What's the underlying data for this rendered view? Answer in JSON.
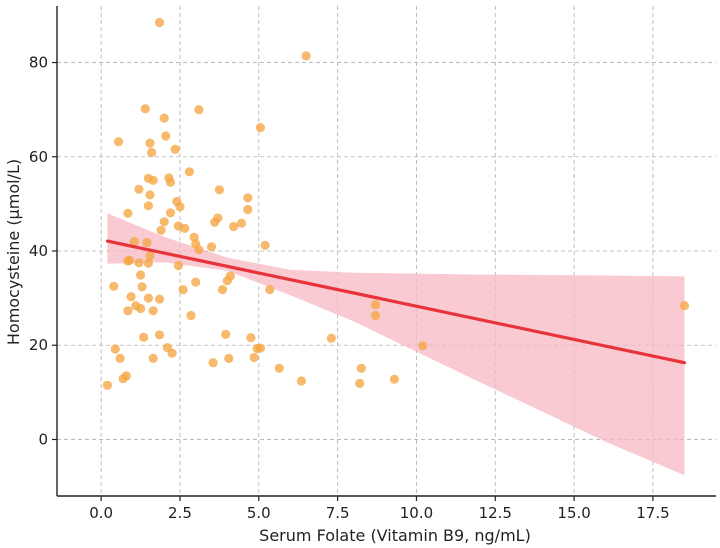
{
  "chart_data": {
    "type": "scatter",
    "title": "",
    "xlabel": "Serum Folate (Vitamin B9, ng/mL)",
    "ylabel": "Homocysteine (µmol/L)",
    "xlim": [
      -1.4,
      19.5
    ],
    "ylim": [
      -12,
      92
    ],
    "xticks": [
      {
        "value": 0,
        "label": "0.0"
      },
      {
        "value": 2.5,
        "label": "2.5"
      },
      {
        "value": 5,
        "label": "5.0"
      },
      {
        "value": 7.5,
        "label": "7.5"
      },
      {
        "value": 10,
        "label": "10.0"
      },
      {
        "value": 12.5,
        "label": "12.5"
      },
      {
        "value": 15,
        "label": "15.0"
      },
      {
        "value": 17.5,
        "label": "17.5"
      }
    ],
    "yticks": [
      {
        "value": 0,
        "label": "0"
      },
      {
        "value": 20,
        "label": "20"
      },
      {
        "value": 40,
        "label": "40"
      },
      {
        "value": 60,
        "label": "60"
      },
      {
        "value": 80,
        "label": "80"
      }
    ],
    "grid": true,
    "colors": {
      "points": "#f5a742",
      "regression_line": "#e8333a",
      "confidence_band": "#f7b8c3",
      "grid": "#b0b0b0",
      "axis": "#222222"
    },
    "series": [
      {
        "points": [
          [
            0.2,
            11.5
          ],
          [
            0.4,
            32.5
          ],
          [
            0.45,
            19.2
          ],
          [
            0.55,
            63.2
          ],
          [
            0.6,
            17.2
          ],
          [
            0.7,
            12.9
          ],
          [
            0.8,
            13.5
          ],
          [
            0.85,
            37.9
          ],
          [
            0.85,
            27.3
          ],
          [
            0.85,
            48.0
          ],
          [
            0.9,
            38.0
          ],
          [
            0.95,
            30.3
          ],
          [
            1.05,
            42.0
          ],
          [
            1.1,
            28.4
          ],
          [
            1.2,
            53.1
          ],
          [
            1.2,
            37.5
          ],
          [
            1.25,
            34.9
          ],
          [
            1.25,
            27.8
          ],
          [
            1.3,
            32.4
          ],
          [
            1.35,
            21.7
          ],
          [
            1.4,
            70.2
          ],
          [
            1.45,
            41.8
          ],
          [
            1.5,
            55.4
          ],
          [
            1.5,
            49.6
          ],
          [
            1.5,
            30.0
          ],
          [
            1.5,
            37.4
          ],
          [
            1.55,
            62.9
          ],
          [
            1.55,
            51.9
          ],
          [
            1.55,
            39.0
          ],
          [
            1.6,
            60.9
          ],
          [
            1.65,
            55.0
          ],
          [
            1.65,
            27.3
          ],
          [
            1.65,
            17.2
          ],
          [
            1.85,
            88.5
          ],
          [
            1.85,
            29.8
          ],
          [
            1.85,
            22.2
          ],
          [
            1.9,
            44.4
          ],
          [
            2.0,
            68.2
          ],
          [
            2.0,
            46.2
          ],
          [
            2.05,
            64.4
          ],
          [
            2.1,
            19.5
          ],
          [
            2.15,
            55.5
          ],
          [
            2.2,
            54.6
          ],
          [
            2.2,
            48.1
          ],
          [
            2.25,
            18.3
          ],
          [
            2.35,
            61.6
          ],
          [
            2.4,
            50.5
          ],
          [
            2.45,
            36.9
          ],
          [
            2.45,
            45.3
          ],
          [
            2.5,
            49.4
          ],
          [
            2.6,
            31.8
          ],
          [
            2.65,
            44.8
          ],
          [
            2.8,
            56.8
          ],
          [
            2.85,
            26.3
          ],
          [
            2.95,
            42.9
          ],
          [
            3.0,
            33.4
          ],
          [
            3.0,
            41.5
          ],
          [
            3.1,
            70.0
          ],
          [
            3.1,
            40.3
          ],
          [
            3.5,
            40.9
          ],
          [
            3.55,
            16.3
          ],
          [
            3.6,
            46.1
          ],
          [
            3.7,
            47.0
          ],
          [
            3.75,
            53.0
          ],
          [
            3.85,
            31.8
          ],
          [
            3.95,
            22.3
          ],
          [
            4.0,
            33.7
          ],
          [
            4.05,
            17.2
          ],
          [
            4.1,
            34.7
          ],
          [
            4.2,
            45.2
          ],
          [
            4.45,
            45.9
          ],
          [
            4.65,
            51.3
          ],
          [
            4.65,
            48.8
          ],
          [
            4.75,
            21.6
          ],
          [
            4.85,
            17.4
          ],
          [
            4.95,
            19.3
          ],
          [
            5.05,
            66.2
          ],
          [
            5.05,
            19.4
          ],
          [
            5.2,
            41.2
          ],
          [
            5.35,
            31.8
          ],
          [
            5.65,
            15.1
          ],
          [
            6.35,
            12.4
          ],
          [
            6.5,
            81.4
          ],
          [
            7.3,
            21.5
          ],
          [
            8.2,
            11.9
          ],
          [
            8.25,
            15.1
          ],
          [
            8.7,
            28.6
          ],
          [
            8.7,
            26.3
          ],
          [
            9.3,
            12.8
          ],
          [
            10.2,
            19.9
          ],
          [
            18.5,
            28.4
          ]
        ]
      }
    ],
    "regression": {
      "x": [
        0.2,
        18.5
      ],
      "y": [
        42.1,
        16.3
      ]
    },
    "confidence_band": {
      "x": [
        0.2,
        2,
        4,
        6,
        8,
        10,
        12,
        14,
        16,
        18.5
      ],
      "upper": [
        48.0,
        43.0,
        38.6,
        36.0,
        35.4,
        35.2,
        35.0,
        34.9,
        34.8,
        34.6
      ],
      "lower": [
        37.3,
        37.6,
        35.8,
        30.6,
        25.1,
        18.6,
        12.2,
        5.9,
        -0.5,
        -7.6
      ]
    }
  }
}
